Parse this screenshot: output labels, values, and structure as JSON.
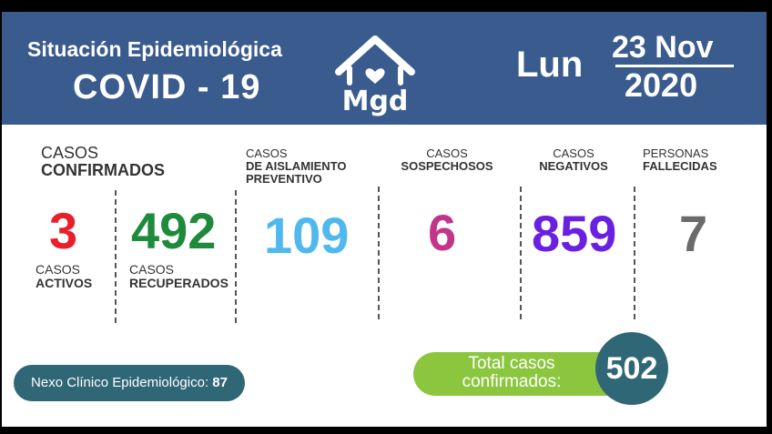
{
  "header": {
    "subtitle": "Situación Epidemiológica",
    "title": "COVID - 19",
    "logo_text": "Mgd",
    "day": "Lun",
    "date_day": "23 Nov",
    "date_year": "2020"
  },
  "stats": {
    "confirmados": {
      "label_top": "CASOS",
      "label_bottom": "CONFIRMADOS",
      "activos": {
        "value": "3",
        "label_top": "CASOS",
        "label_bottom": "ACTIVOS",
        "color": "#e8202a"
      },
      "recuperados": {
        "value": "492",
        "label_top": "CASOS",
        "label_bottom": "RECUPERADOS",
        "color": "#1e8a3c"
      }
    },
    "aislamiento": {
      "label_1": "CASOS",
      "label_2": "DE AISLAMIENTO",
      "label_3": "PREVENTIVO",
      "value": "109",
      "color": "#4fb8ef"
    },
    "sospechosos": {
      "label_1": "CASOS",
      "label_2": "SOSPECHOSOS",
      "value": "6",
      "color": "#c2358a"
    },
    "negativos": {
      "label_1": "CASOS",
      "label_2": "NEGATIVOS",
      "value": "859",
      "color": "#6a20e0"
    },
    "fallecidas": {
      "label_1": "PERSONAS",
      "label_2": "FALLECIDAS",
      "value": "7",
      "color": "#6b6b6b"
    }
  },
  "nexo": {
    "label": "Nexo Clínico Epidemiológico:",
    "value": "87"
  },
  "total": {
    "label_1": "Total casos",
    "label_2": "confirmados:",
    "value": "502"
  },
  "colors": {
    "header_bg": "#3a5b8d",
    "teal": "#2f6776",
    "green": "#8cc63f"
  },
  "icons": [
    "house-heart-logo"
  ]
}
